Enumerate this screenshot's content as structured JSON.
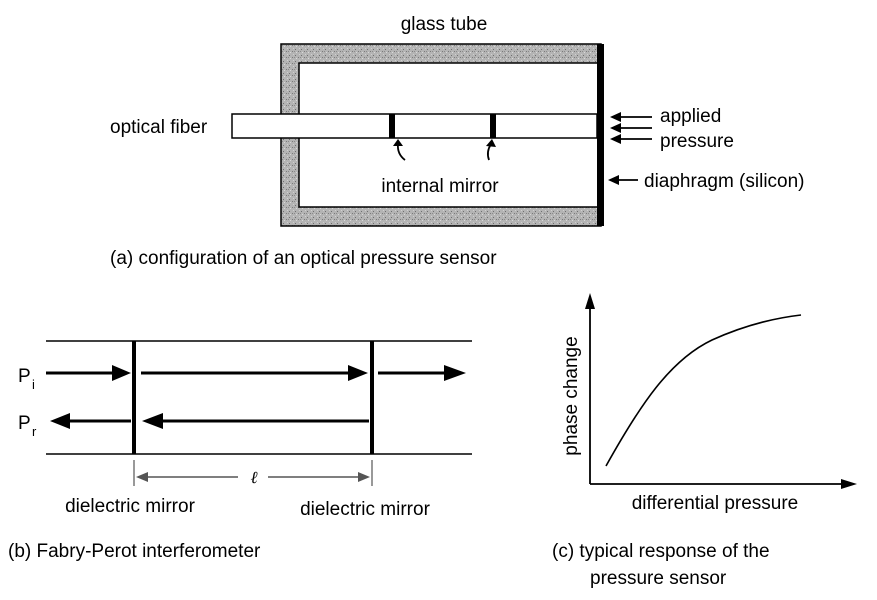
{
  "panel_a": {
    "title": "glass tube",
    "fiber_label": "optical fiber",
    "pressure_label_1": "applied",
    "pressure_label_2": "pressure",
    "mirror_label": "internal mirror",
    "diaphragm_label": "diaphragm (silicon)",
    "caption": "(a) configuration of an optical pressure sensor"
  },
  "panel_b": {
    "pi_main": "P",
    "pi_sub": "i",
    "pr_main": "P",
    "pr_sub": "r",
    "length_symbol": "ℓ",
    "mirror_left_label": "dielectric mirror",
    "mirror_right_label": "dielectric mirror",
    "caption": "(b) Fabry-Perot interferometer"
  },
  "panel_c": {
    "ylabel": "phase change",
    "xlabel": "differential pressure",
    "caption_line1": "(c)  typical response of the",
    "caption_line2": "pressure sensor"
  },
  "colors": {
    "stroke": "#000000",
    "tube_fill": "#a9a9a9",
    "dim_arrow": "#555555"
  }
}
